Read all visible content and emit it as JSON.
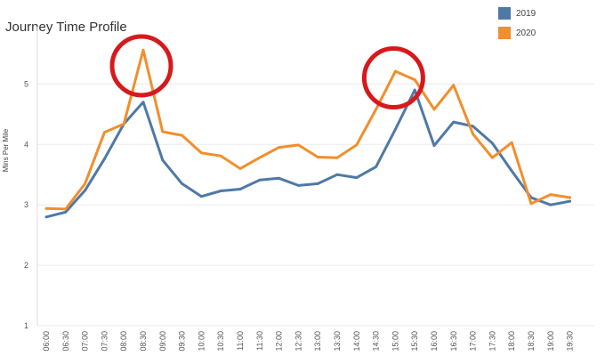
{
  "chart_data": {
    "type": "line",
    "title": "Journey Time Profile",
    "ylabel": "Mins Per Mile",
    "xlabel": "",
    "ylim": [
      1,
      5.8
    ],
    "yticks": [
      1,
      2,
      3,
      4,
      5
    ],
    "grid": true,
    "legend": "top-right",
    "x": [
      "06:00",
      "06:30",
      "07:00",
      "07:30",
      "08:00",
      "08:30",
      "09:00",
      "09:30",
      "10:00",
      "10:30",
      "11:00",
      "11:30",
      "12:00",
      "12:30",
      "13:00",
      "13:30",
      "14:00",
      "14:30",
      "15:00",
      "15:30",
      "16:00",
      "16:30",
      "17:00",
      "17:30",
      "18:00",
      "18:30",
      "19:00",
      "19:30"
    ],
    "series": [
      {
        "name": "2019",
        "color": "#4e79a7",
        "values": [
          2.8,
          2.88,
          3.24,
          3.76,
          4.34,
          4.7,
          3.74,
          3.35,
          3.14,
          3.23,
          3.26,
          3.41,
          3.44,
          3.32,
          3.35,
          3.5,
          3.45,
          3.63,
          4.25,
          4.9,
          3.98,
          4.37,
          4.3,
          4.02,
          3.56,
          3.12,
          3.0,
          3.06
        ]
      },
      {
        "name": "2020",
        "color": "#f28e2b",
        "values": [
          2.94,
          2.93,
          3.35,
          4.2,
          4.34,
          5.56,
          4.21,
          4.15,
          3.86,
          3.81,
          3.6,
          3.78,
          3.95,
          3.99,
          3.79,
          3.78,
          3.99,
          4.58,
          5.21,
          5.07,
          4.58,
          4.98,
          4.17,
          3.78,
          4.03,
          3.02,
          3.17,
          3.12
        ]
      }
    ],
    "annotations": [
      {
        "type": "circle",
        "x": "08:30",
        "y": 5.3,
        "color": "#d7191c"
      },
      {
        "type": "circle",
        "x": "15:00",
        "y": 5.1,
        "color": "#d7191c"
      }
    ]
  }
}
